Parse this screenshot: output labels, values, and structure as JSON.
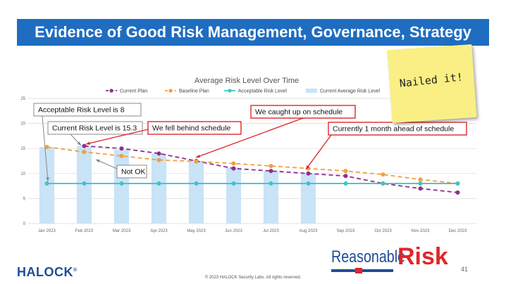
{
  "slide": {
    "title": "Evidence of Good Risk Management, Governance, Strategy",
    "sticky_note": "Nailed it!",
    "logo_left": "HALOCK",
    "logo_left_mark": "®",
    "footer": "© 2023 HALOCK Security Labs. All rights reserved.",
    "page_number": "41",
    "logo_right_a": "Reasonable",
    "logo_right_b": "Risk"
  },
  "chart_data": {
    "type": "line",
    "title": "Average Risk Level Over Time",
    "categories": [
      "Jan 2023",
      "Feb 2023",
      "Mar 2023",
      "Apr 2023",
      "May 2023",
      "Jun 2023",
      "Jul 2023",
      "Aug 2023",
      "Sep 2023",
      "Oct 2023",
      "Nov 2023",
      "Dec 2023"
    ],
    "ylim": [
      0,
      25
    ],
    "yticks": [
      "0",
      "5",
      "10",
      "15",
      "20",
      "25"
    ],
    "series": [
      {
        "name": "Current Plan",
        "kind": "line",
        "dashed": true,
        "color": "#8e2e8e",
        "values": [
          null,
          15.5,
          15.0,
          14.0,
          12.5,
          11.0,
          10.5,
          10.0,
          9.5,
          8.0,
          7.0,
          6.2
        ]
      },
      {
        "name": "Baseline Plan",
        "kind": "line",
        "dashed": true,
        "color": "#f0a040",
        "values": [
          15.3,
          14.3,
          13.5,
          12.7,
          12.4,
          12.0,
          11.5,
          11.0,
          10.5,
          9.8,
          8.8,
          8.0
        ]
      },
      {
        "name": "Acceptable Risk Level",
        "kind": "line",
        "dashed": false,
        "color": "#40c4c4",
        "values": [
          8,
          8,
          8,
          8,
          8,
          8,
          8,
          8,
          8,
          8,
          8,
          8
        ]
      },
      {
        "name": "Current Average Risk Level",
        "kind": "bar",
        "color": "#c9e3f7",
        "values": [
          15.3,
          15.5,
          14.8,
          14.0,
          12.5,
          11.2,
          10.5,
          10.0,
          null,
          null,
          null,
          null
        ]
      }
    ],
    "annotations": [
      {
        "text": "Acceptable Risk Level is 8",
        "color": "#888888"
      },
      {
        "text": "Current Risk Level is 15.3",
        "color": "#888888"
      },
      {
        "text": "Not OK",
        "color": "#888888"
      },
      {
        "text": "We fell behind schedule",
        "color": "#e0262a"
      },
      {
        "text": "We caught up on schedule",
        "color": "#e0262a"
      },
      {
        "text": "Currently 1 month ahead of schedule",
        "color": "#e0262a"
      }
    ],
    "grid": "horizontal",
    "legend": "top"
  }
}
